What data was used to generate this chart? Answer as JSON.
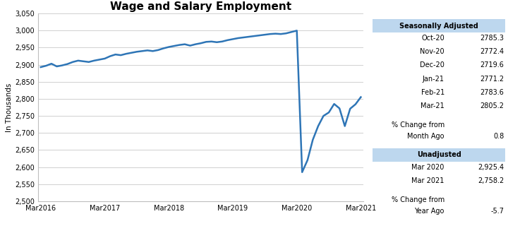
{
  "title": "Wage and Salary Employment",
  "ylabel": "In Thousands",
  "ylim": [
    2500,
    3050
  ],
  "yticks": [
    2500,
    2550,
    2600,
    2650,
    2700,
    2750,
    2800,
    2850,
    2900,
    2950,
    3000,
    3050
  ],
  "line_color": "#2E75B6",
  "line_width": 1.8,
  "chart_bg": "#FFFFFF",
  "plot_bg": "#FFFFFF",
  "grid_color": "#BEBEBE",
  "series": {
    "values": [
      2893,
      2897,
      2903,
      2895,
      2898,
      2902,
      2908,
      2912,
      2910,
      2908,
      2912,
      2915,
      2918,
      2925,
      2930,
      2928,
      2932,
      2935,
      2938,
      2940,
      2942,
      2940,
      2943,
      2948,
      2952,
      2955,
      2958,
      2960,
      2956,
      2960,
      2963,
      2967,
      2968,
      2966,
      2968,
      2972,
      2975,
      2978,
      2980,
      2982,
      2984,
      2986,
      2988,
      2990,
      2991,
      2990,
      2992,
      2996,
      3000,
      2585,
      2620,
      2680,
      2720,
      2750,
      2760,
      2785,
      2772,
      2720,
      2771,
      2784,
      2805
    ]
  },
  "xtick_labels": [
    "Mar2016",
    "Mar2017",
    "Mar2018",
    "Mar2019",
    "Mar2020",
    "Mar2021"
  ],
  "xtick_positions": [
    0,
    12,
    24,
    36,
    48,
    60
  ],
  "seasonally_adjusted_header": "Seasonally Adjusted",
  "sa_rows": [
    [
      "Oct-20",
      "2785.3"
    ],
    [
      "Nov-20",
      "2772.4"
    ],
    [
      "Dec-20",
      "2719.6"
    ],
    [
      "Jan-21",
      "2771.2"
    ],
    [
      "Feb-21",
      "2783.6"
    ],
    [
      "Mar-21",
      "2805.2"
    ]
  ],
  "sa_pct_label1": "% Change from",
  "sa_pct_label2": "Month Ago",
  "sa_pct_value": "0.8",
  "unadjusted_header": "Unadjusted",
  "ua_rows": [
    [
      "Mar 2020",
      "2,925.4"
    ],
    [
      "Mar 2021",
      "2,758.2"
    ]
  ],
  "ua_pct_label1": "% Change from",
  "ua_pct_label2": "Year Ago",
  "ua_pct_value": "-5.7",
  "header_bg": "#BDD7EE",
  "table_font_size": 7.0,
  "title_font_size": 11
}
